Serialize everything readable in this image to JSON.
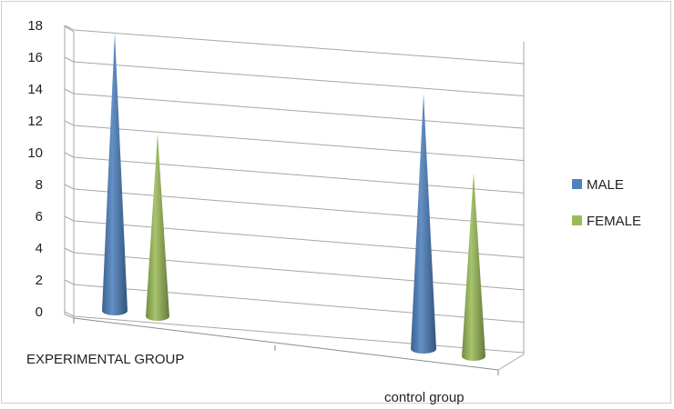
{
  "chart_data": {
    "type": "bar",
    "style": "3d-cone",
    "categories": [
      "EXPERIMENTAL GROUP",
      "control group"
    ],
    "series": [
      {
        "name": "MALE",
        "color": "#4f81bd",
        "values": [
          17.5,
          15.5
        ]
      },
      {
        "name": "FEMALE",
        "color": "#9bbb59",
        "values": [
          11.5,
          11
        ]
      }
    ],
    "ylim": [
      0,
      18
    ],
    "yticks": [
      "0",
      "2",
      "4",
      "6",
      "8",
      "10",
      "12",
      "14",
      "16",
      "18"
    ],
    "grid": true,
    "legend_position": "right"
  }
}
